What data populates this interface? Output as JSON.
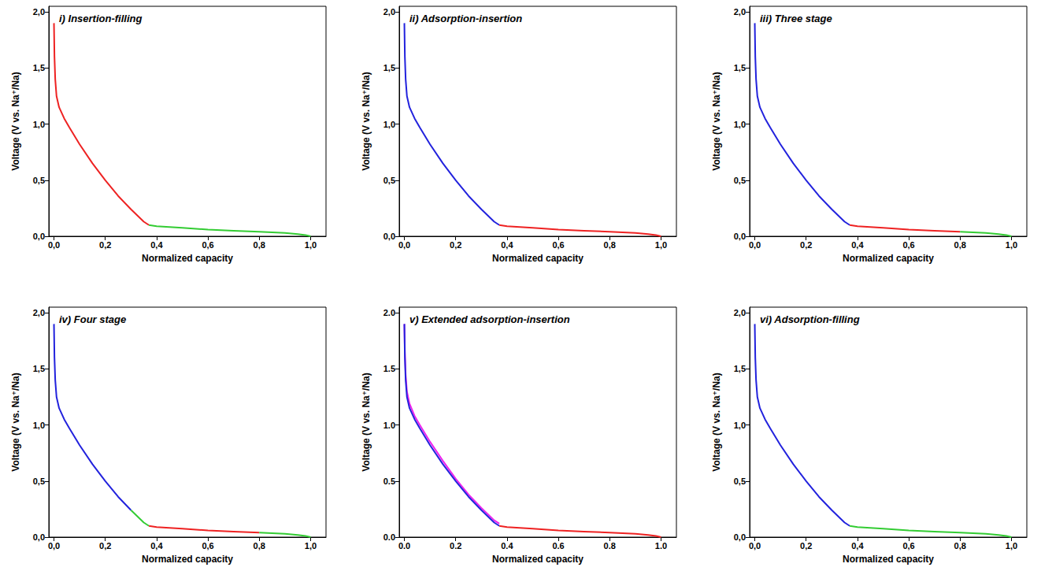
{
  "chart_data": [
    {
      "type": "line",
      "title": "i) Insertion-filling",
      "x_label": "Normalized capacity",
      "y_label": "Voltage (V vs. Na⁺/Na)",
      "xlim": [
        -0.02,
        1.06
      ],
      "ylim": [
        0,
        2.05
      ],
      "grid": false,
      "xticks": [
        {
          "value": 0,
          "label": "0,0"
        },
        {
          "value": 0.2,
          "label": "0,2"
        },
        {
          "value": 0.4,
          "label": "0,4"
        },
        {
          "value": 0.6,
          "label": "0,6"
        },
        {
          "value": 0.8,
          "label": "0,8"
        },
        {
          "value": 1,
          "label": "1,0"
        }
      ],
      "yticks": [
        {
          "value": 0,
          "label": "0,0"
        },
        {
          "value": 0.5,
          "label": "0,5"
        },
        {
          "value": 1,
          "label": "1,0"
        },
        {
          "value": 1.5,
          "label": "1,5"
        },
        {
          "value": 2,
          "label": "2,0"
        }
      ],
      "series": [
        {
          "color": "#ee2222",
          "x": [
            0,
            0.002,
            0.005,
            0.01,
            0.02,
            0.04,
            0.06,
            0.1,
            0.15,
            0.2,
            0.25,
            0.3,
            0.35,
            0.37
          ],
          "values": [
            1.9,
            1.6,
            1.4,
            1.25,
            1.15,
            1.05,
            0.97,
            0.82,
            0.65,
            0.5,
            0.36,
            0.24,
            0.13,
            0.1
          ]
        },
        {
          "color": "#33cc33",
          "x": [
            0.37,
            0.4,
            0.5,
            0.6,
            0.7,
            0.8,
            0.9,
            0.95,
            0.98,
            1.0
          ],
          "values": [
            0.1,
            0.09,
            0.075,
            0.06,
            0.05,
            0.04,
            0.03,
            0.02,
            0.01,
            0.0
          ]
        }
      ]
    },
    {
      "type": "line",
      "title": "ii) Adsorption-insertion",
      "x_label": "Normalized capacity",
      "y_label": "Voltage (V vs. Na⁺/Na)",
      "xlim": [
        -0.02,
        1.06
      ],
      "ylim": [
        0,
        2.05
      ],
      "grid": false,
      "xticks": [
        {
          "value": 0,
          "label": "0,0"
        },
        {
          "value": 0.2,
          "label": "0,2"
        },
        {
          "value": 0.4,
          "label": "0,4"
        },
        {
          "value": 0.6,
          "label": "0,6"
        },
        {
          "value": 0.8,
          "label": "0,8"
        },
        {
          "value": 1,
          "label": "1,0"
        }
      ],
      "yticks": [
        {
          "value": 0,
          "label": "0,0"
        },
        {
          "value": 0.5,
          "label": "0,5"
        },
        {
          "value": 1,
          "label": "1,0"
        },
        {
          "value": 1.5,
          "label": "1,5"
        },
        {
          "value": 2,
          "label": "2,0"
        }
      ],
      "series": [
        {
          "color": "#2222dd",
          "x": [
            0,
            0.002,
            0.005,
            0.01,
            0.02,
            0.04,
            0.06,
            0.1,
            0.15,
            0.2,
            0.25,
            0.3,
            0.35,
            0.37
          ],
          "values": [
            1.9,
            1.6,
            1.4,
            1.25,
            1.15,
            1.05,
            0.97,
            0.82,
            0.65,
            0.5,
            0.36,
            0.24,
            0.13,
            0.1
          ]
        },
        {
          "color": "#ee2222",
          "x": [
            0.37,
            0.4,
            0.5,
            0.6,
            0.7,
            0.8,
            0.9,
            0.95,
            0.98,
            1.0
          ],
          "values": [
            0.1,
            0.09,
            0.075,
            0.06,
            0.05,
            0.04,
            0.03,
            0.02,
            0.01,
            0.0
          ]
        }
      ]
    },
    {
      "type": "line",
      "title": "iii) Three stage",
      "x_label": "Normalized capacity",
      "y_label": "Voltage (V vs. Na⁺/Na)",
      "xlim": [
        -0.02,
        1.06
      ],
      "ylim": [
        0,
        2.05
      ],
      "grid": false,
      "xticks": [
        {
          "value": 0,
          "label": "0,0"
        },
        {
          "value": 0.2,
          "label": "0,2"
        },
        {
          "value": 0.4,
          "label": "0,4"
        },
        {
          "value": 0.6,
          "label": "0,6"
        },
        {
          "value": 0.8,
          "label": "0,8"
        },
        {
          "value": 1,
          "label": "1,0"
        }
      ],
      "yticks": [
        {
          "value": 0,
          "label": "0,0"
        },
        {
          "value": 0.5,
          "label": "0,5"
        },
        {
          "value": 1,
          "label": "1,0"
        },
        {
          "value": 1.5,
          "label": "1,5"
        },
        {
          "value": 2,
          "label": "2,0"
        }
      ],
      "series": [
        {
          "color": "#2222dd",
          "x": [
            0,
            0.002,
            0.005,
            0.01,
            0.02,
            0.04,
            0.06,
            0.1,
            0.15,
            0.2,
            0.25,
            0.3,
            0.35,
            0.37
          ],
          "values": [
            1.9,
            1.6,
            1.4,
            1.25,
            1.15,
            1.05,
            0.97,
            0.82,
            0.65,
            0.5,
            0.36,
            0.24,
            0.13,
            0.1
          ]
        },
        {
          "color": "#ee2222",
          "x": [
            0.37,
            0.4,
            0.5,
            0.6,
            0.7,
            0.8
          ],
          "values": [
            0.1,
            0.09,
            0.075,
            0.06,
            0.05,
            0.04
          ]
        },
        {
          "color": "#33cc33",
          "x": [
            0.8,
            0.9,
            0.95,
            0.98,
            1.0
          ],
          "values": [
            0.04,
            0.03,
            0.02,
            0.01,
            0.0
          ]
        }
      ]
    },
    {
      "type": "line",
      "title": "iv) Four stage",
      "x_label": "Normalized capacity",
      "y_label": "Voltage (V vs. Na⁺/Na)",
      "xlim": [
        -0.02,
        1.06
      ],
      "ylim": [
        0,
        2.05
      ],
      "grid": false,
      "xticks": [
        {
          "value": 0,
          "label": "0,0"
        },
        {
          "value": 0.2,
          "label": "0,2"
        },
        {
          "value": 0.4,
          "label": "0,4"
        },
        {
          "value": 0.6,
          "label": "0,6"
        },
        {
          "value": 0.8,
          "label": "0,8"
        },
        {
          "value": 1,
          "label": "1,0"
        }
      ],
      "yticks": [
        {
          "value": 0,
          "label": "0,0"
        },
        {
          "value": 0.5,
          "label": "0,5"
        },
        {
          "value": 1,
          "label": "1,0"
        },
        {
          "value": 1.5,
          "label": "1,5"
        },
        {
          "value": 2,
          "label": "2,0"
        }
      ],
      "series": [
        {
          "color": "#2222dd",
          "x": [
            0,
            0.002,
            0.005,
            0.01,
            0.02,
            0.04,
            0.06,
            0.1,
            0.15,
            0.2,
            0.25,
            0.3
          ],
          "values": [
            1.9,
            1.6,
            1.4,
            1.25,
            1.15,
            1.05,
            0.97,
            0.82,
            0.65,
            0.5,
            0.36,
            0.24
          ]
        },
        {
          "color": "#33cc33",
          "x": [
            0.3,
            0.35,
            0.37
          ],
          "values": [
            0.24,
            0.13,
            0.1
          ]
        },
        {
          "color": "#ee2222",
          "x": [
            0.37,
            0.4,
            0.5,
            0.6,
            0.7,
            0.8
          ],
          "values": [
            0.1,
            0.09,
            0.075,
            0.06,
            0.05,
            0.04
          ]
        },
        {
          "color": "#33cc33",
          "x": [
            0.8,
            0.9,
            0.95,
            0.98,
            1.0
          ],
          "values": [
            0.04,
            0.03,
            0.02,
            0.01,
            0.0
          ]
        }
      ]
    },
    {
      "type": "line",
      "title": "v) Extended adsorption-insertion",
      "x_label": "Normalized capacity",
      "y_label": "Voltage (V vs. Na⁺/Na)",
      "xlim": [
        -0.02,
        1.06
      ],
      "ylim": [
        0,
        2.05
      ],
      "grid": false,
      "xticks": [
        {
          "value": 0,
          "label": "0.0"
        },
        {
          "value": 0.2,
          "label": "0.2"
        },
        {
          "value": 0.4,
          "label": "0.4"
        },
        {
          "value": 0.6,
          "label": "0.6"
        },
        {
          "value": 0.8,
          "label": "0.8"
        },
        {
          "value": 1,
          "label": "1.0"
        }
      ],
      "yticks": [
        {
          "value": 0,
          "label": "0.0"
        },
        {
          "value": 0.5,
          "label": "0.5"
        },
        {
          "value": 1,
          "label": "1.0"
        },
        {
          "value": 1.5,
          "label": "1.5"
        },
        {
          "value": 2,
          "label": "2.0"
        }
      ],
      "series": [
        {
          "color": "#ee22ee",
          "x": [
            0,
            0.002,
            0.005,
            0.01,
            0.02,
            0.04,
            0.06,
            0.1,
            0.15,
            0.2,
            0.25,
            0.3,
            0.35,
            0.37
          ],
          "values": [
            1.9,
            1.65,
            1.45,
            1.3,
            1.19,
            1.08,
            1.0,
            0.85,
            0.68,
            0.52,
            0.38,
            0.26,
            0.15,
            0.12
          ]
        },
        {
          "color": "#2222dd",
          "x": [
            0,
            0.002,
            0.005,
            0.01,
            0.02,
            0.04,
            0.06,
            0.1,
            0.15,
            0.2,
            0.25,
            0.3,
            0.35,
            0.37
          ],
          "values": [
            1.9,
            1.6,
            1.4,
            1.25,
            1.15,
            1.05,
            0.97,
            0.82,
            0.65,
            0.5,
            0.36,
            0.24,
            0.13,
            0.1
          ]
        },
        {
          "color": "#ee2222",
          "x": [
            0.37,
            0.4,
            0.5,
            0.6,
            0.7,
            0.8,
            0.9,
            0.95,
            0.98,
            1.0
          ],
          "values": [
            0.1,
            0.09,
            0.075,
            0.06,
            0.05,
            0.04,
            0.03,
            0.02,
            0.01,
            0.0
          ]
        }
      ]
    },
    {
      "type": "line",
      "title": "vi) Adsorption-filling",
      "x_label": "Normalized capacity",
      "y_label": "Voltage (V vs. Na⁺/Na)",
      "xlim": [
        -0.02,
        1.06
      ],
      "ylim": [
        0,
        2.05
      ],
      "grid": false,
      "xticks": [
        {
          "value": 0,
          "label": "0,0"
        },
        {
          "value": 0.2,
          "label": "0,2"
        },
        {
          "value": 0.4,
          "label": "0,4"
        },
        {
          "value": 0.6,
          "label": "0,6"
        },
        {
          "value": 0.8,
          "label": "0,8"
        },
        {
          "value": 1,
          "label": "1,0"
        }
      ],
      "yticks": [
        {
          "value": 0,
          "label": "0,0"
        },
        {
          "value": 0.5,
          "label": "0,5"
        },
        {
          "value": 1,
          "label": "1,0"
        },
        {
          "value": 1.5,
          "label": "1,5"
        },
        {
          "value": 2,
          "label": "2,0"
        }
      ],
      "series": [
        {
          "color": "#2222dd",
          "x": [
            0,
            0.002,
            0.005,
            0.01,
            0.02,
            0.04,
            0.06,
            0.1,
            0.15,
            0.2,
            0.25,
            0.3,
            0.35,
            0.37
          ],
          "values": [
            1.9,
            1.6,
            1.4,
            1.25,
            1.15,
            1.05,
            0.97,
            0.82,
            0.65,
            0.5,
            0.36,
            0.24,
            0.13,
            0.1
          ]
        },
        {
          "color": "#33cc33",
          "x": [
            0.37,
            0.4,
            0.5,
            0.6,
            0.7,
            0.8,
            0.9,
            0.95,
            0.98,
            1.0
          ],
          "values": [
            0.1,
            0.09,
            0.075,
            0.06,
            0.05,
            0.04,
            0.03,
            0.02,
            0.01,
            0.0
          ]
        }
      ]
    }
  ]
}
